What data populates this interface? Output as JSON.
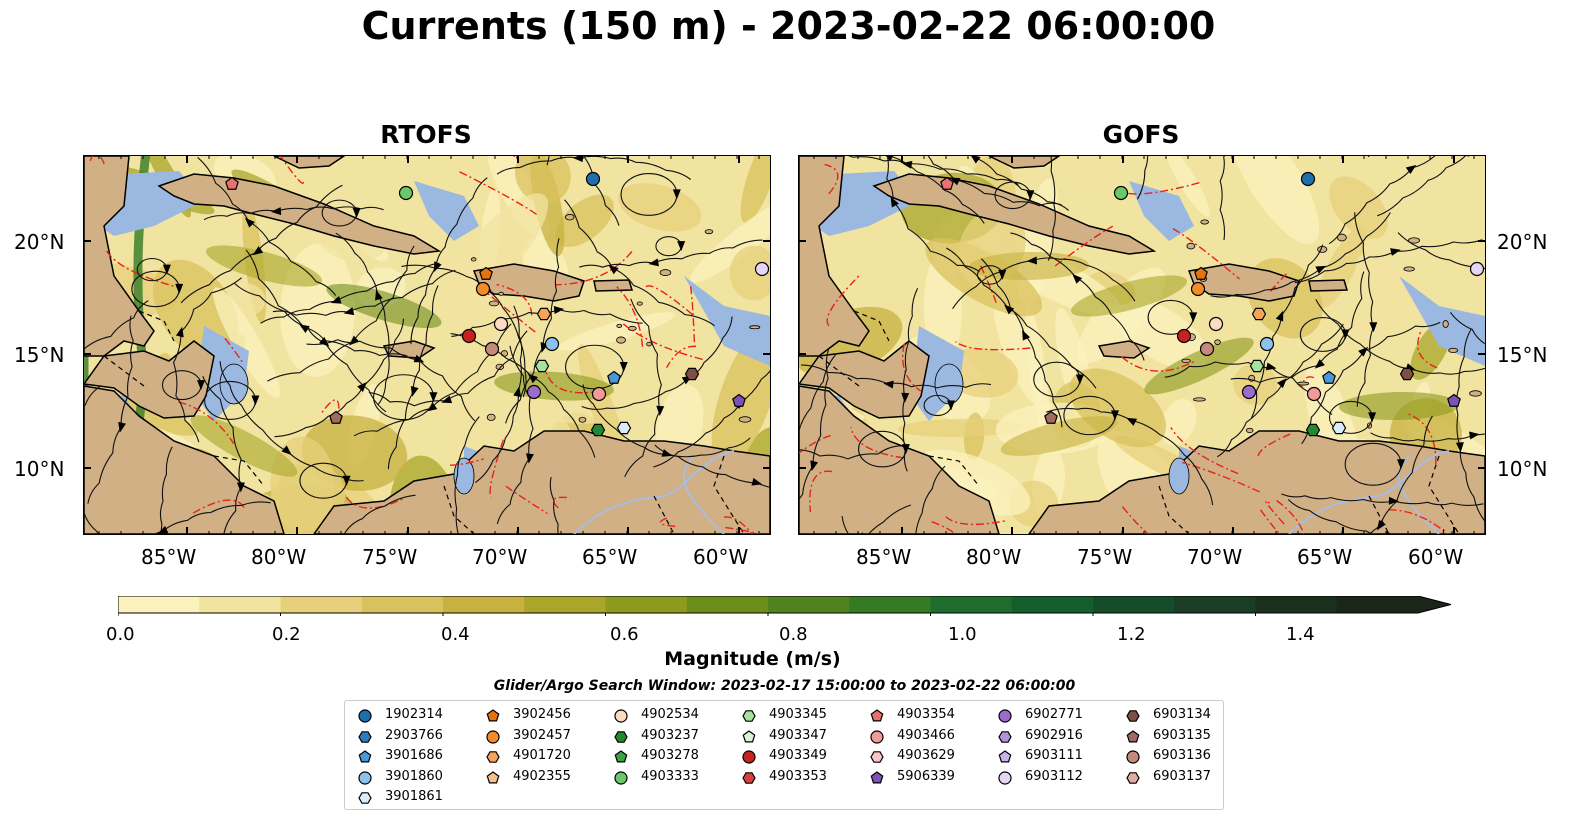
{
  "title": "Currents (150 m) - 2023-02-22 06:00:00",
  "panels": [
    {
      "title": "RTOFS"
    },
    {
      "title": "GOFS"
    }
  ],
  "lat_ticks": [
    "10°N",
    "15°N",
    "20°N"
  ],
  "lon_ticks": [
    "85°W",
    "80°W",
    "75°W",
    "70°W",
    "65°W",
    "60°W"
  ],
  "colorbar": {
    "label": "Magnitude (m/s)",
    "ticks": [
      "0.0",
      "0.2",
      "0.4",
      "0.6",
      "0.8",
      "1.0",
      "1.2",
      "1.4"
    ],
    "colors": [
      "#fbf2bd",
      "#f1e3a0",
      "#e6d07b",
      "#d9c15e",
      "#c7b140",
      "#aaa62a",
      "#8c9a1d",
      "#6e8e1c",
      "#508220",
      "#357a24",
      "#1f6c2f",
      "#155d2c",
      "#154d2a",
      "#1a3d25",
      "#1b2f1d",
      "#1a2618"
    ],
    "extend": "max"
  },
  "land_color": "#d0b084",
  "shallow_water_color": "#9ab8e0",
  "search_window": "Glider/Argo Search Window: 2023-02-17 15:00:00 to 2023-02-22 06:00:00",
  "legend": [
    {
      "id": "1902314",
      "marker": "circle",
      "color": "#1f6fad"
    },
    {
      "id": "2903766",
      "marker": "hexagon",
      "color": "#2e7bbf"
    },
    {
      "id": "3901686",
      "marker": "pentagon",
      "color": "#4b98d8"
    },
    {
      "id": "3901860",
      "marker": "circle",
      "color": "#8cc2ec"
    },
    {
      "id": "3901861",
      "marker": "hexagon",
      "color": "#d8ecfb"
    },
    {
      "id": "3902456",
      "marker": "pentagon",
      "color": "#e8730d"
    },
    {
      "id": "3902457",
      "marker": "circle",
      "color": "#f08c2a"
    },
    {
      "id": "4901720",
      "marker": "hexagon",
      "color": "#f5a55a"
    },
    {
      "id": "4902355",
      "marker": "pentagon",
      "color": "#f8c08c"
    },
    {
      "id": "4902534",
      "marker": "circle",
      "color": "#fbdcc0"
    },
    {
      "id": "4903237",
      "marker": "hexagon",
      "color": "#228a2e"
    },
    {
      "id": "4903278",
      "marker": "pentagon",
      "color": "#3aa43f"
    },
    {
      "id": "4903333",
      "marker": "circle",
      "color": "#6cc76a"
    },
    {
      "id": "4903345",
      "marker": "hexagon",
      "color": "#a5e29b"
    },
    {
      "id": "4903347",
      "marker": "pentagon",
      "color": "#d8f5cf"
    },
    {
      "id": "4903349",
      "marker": "circle",
      "color": "#c62222"
    },
    {
      "id": "4903353",
      "marker": "hexagon",
      "color": "#d84141"
    },
    {
      "id": "4903354",
      "marker": "pentagon",
      "color": "#e8706f"
    },
    {
      "id": "4903466",
      "marker": "circle",
      "color": "#f19a9a"
    },
    {
      "id": "4903629",
      "marker": "hexagon",
      "color": "#f8c6c6"
    },
    {
      "id": "5906339",
      "marker": "pentagon",
      "color": "#7b52b5"
    },
    {
      "id": "6902771",
      "marker": "circle",
      "color": "#9b6ccc"
    },
    {
      "id": "6902916",
      "marker": "hexagon",
      "color": "#b292dc"
    },
    {
      "id": "6903111",
      "marker": "pentagon",
      "color": "#cbb4ea"
    },
    {
      "id": "6903112",
      "marker": "circle",
      "color": "#e5d6f6"
    },
    {
      "id": "6903134",
      "marker": "hexagon",
      "color": "#7e4f45"
    },
    {
      "id": "6903135",
      "marker": "pentagon",
      "color": "#a06c60"
    },
    {
      "id": "6903136",
      "marker": "circle",
      "color": "#c48a7e"
    },
    {
      "id": "6903137",
      "marker": "hexagon",
      "color": "#e0ad9e"
    }
  ]
}
